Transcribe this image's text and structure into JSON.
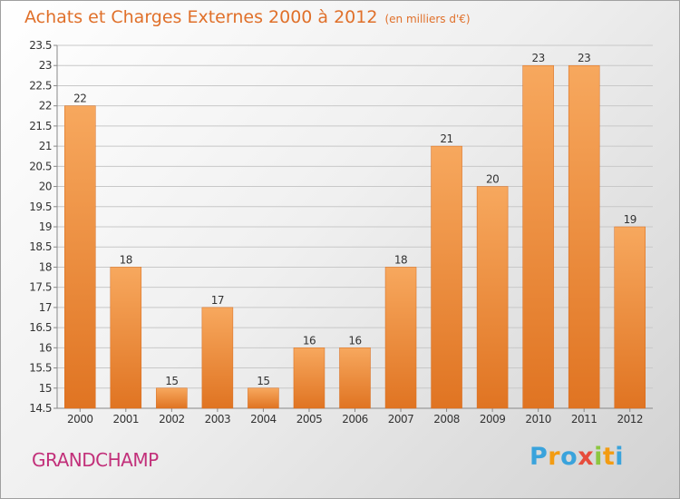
{
  "title": "Achats et Charges Externes 2000 à 2012",
  "subtitle": "(en milliers d'€)",
  "commune": "GRANDCHAMP",
  "logo": {
    "letters": [
      "P",
      "r",
      "o",
      "x",
      "i",
      "t",
      "i"
    ],
    "colors": [
      "#3aa3dc",
      "#f39c12",
      "#3aa3dc",
      "#e74c3c",
      "#8cc63f",
      "#f39c12",
      "#3aa3dc"
    ]
  },
  "colors": {
    "bar": "#f2892c",
    "bar_light": "#f7a55c",
    "title": "#e0702a",
    "commune": "#c2307a"
  },
  "chart_data": {
    "type": "bar",
    "title": "Achats et Charges Externes 2000 à 2012",
    "subtitle": "(en milliers d'€)",
    "categories": [
      "2000",
      "2001",
      "2002",
      "2003",
      "2004",
      "2005",
      "2006",
      "2007",
      "2008",
      "2009",
      "2010",
      "2011",
      "2012"
    ],
    "values": [
      22,
      18,
      15,
      17,
      15,
      16,
      16,
      18,
      21,
      20,
      23,
      23,
      19
    ],
    "data_labels": [
      "22",
      "18",
      "15",
      "17",
      "15",
      "16",
      "16",
      "18",
      "21",
      "20",
      "23",
      "23",
      "19"
    ],
    "ylim": [
      14.5,
      23.5
    ],
    "yticks": [
      14.5,
      15,
      15.5,
      16,
      16.5,
      17,
      17.5,
      18,
      18.5,
      19,
      19.5,
      20,
      20.5,
      21,
      21.5,
      22,
      22.5,
      23,
      23.5
    ],
    "ytick_labels": [
      "14.5",
      "15",
      "15.5",
      "16",
      "16.5",
      "17",
      "17.5",
      "18",
      "18.5",
      "19",
      "19.5",
      "20",
      "20.5",
      "21",
      "21.5",
      "22",
      "22.5",
      "23",
      "23.5"
    ],
    "grid": true
  }
}
